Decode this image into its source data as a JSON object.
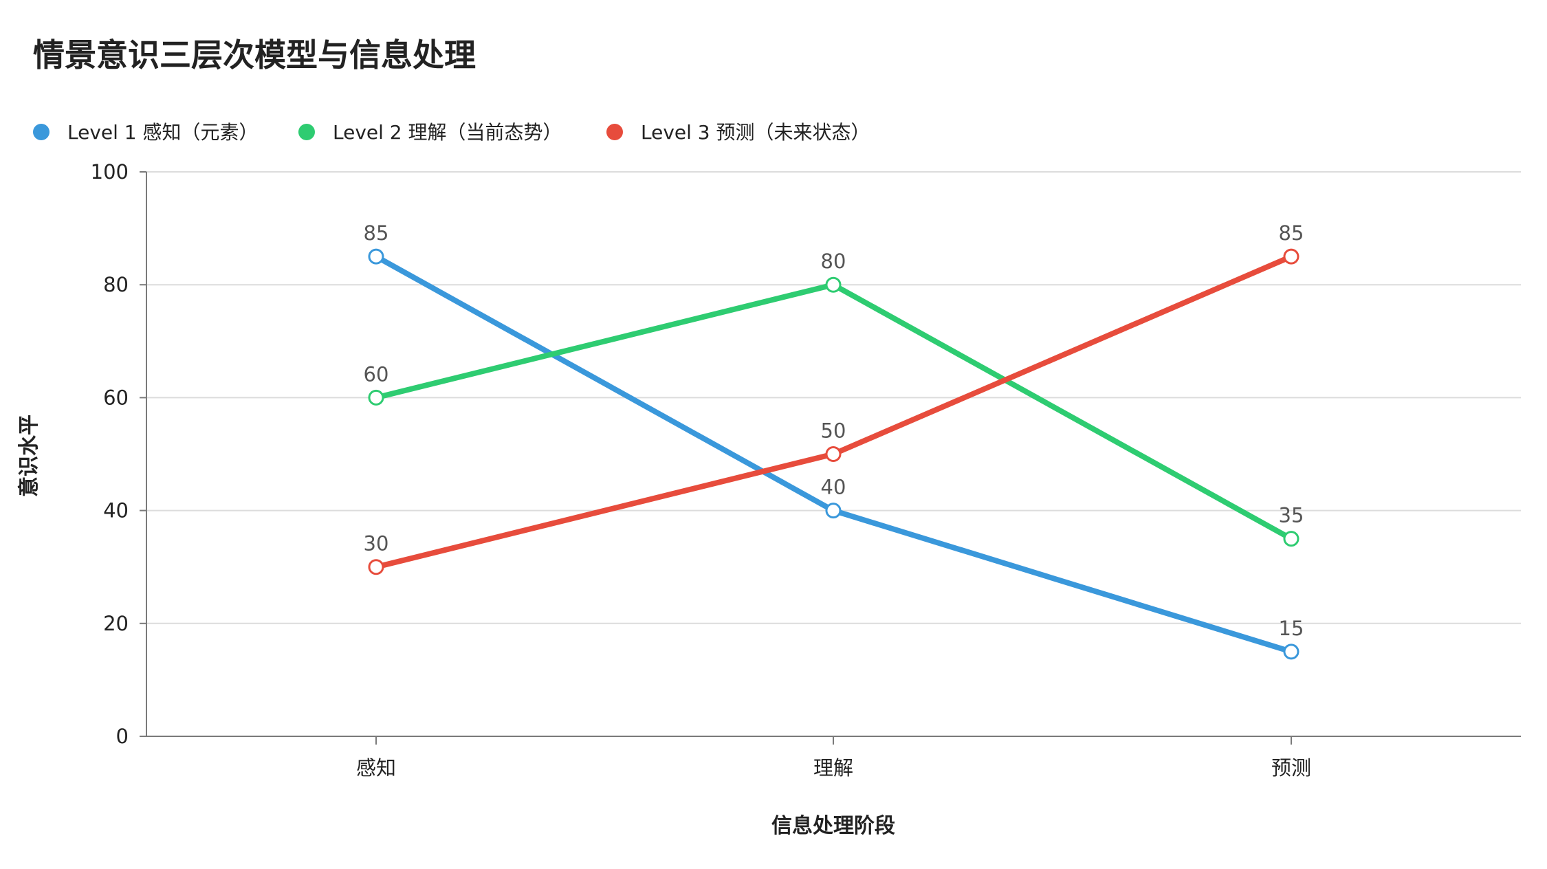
{
  "chart_data": {
    "type": "line",
    "title": "情景意识三层次模型与信息处理",
    "xlabel": "信息处理阶段",
    "ylabel": "意识水平",
    "categories": [
      "感知",
      "理解",
      "预测"
    ],
    "ylim": [
      0,
      100
    ],
    "yticks": [
      0,
      20,
      40,
      60,
      80,
      100
    ],
    "grid": true,
    "legend_position": "top-left",
    "series": [
      {
        "name": "Level 1 感知（元素）",
        "color": "#3a98db",
        "values": [
          85,
          40,
          15
        ]
      },
      {
        "name": "Level 2 理解（当前态势）",
        "color": "#2ecc71",
        "values": [
          60,
          80,
          35
        ]
      },
      {
        "name": "Level 3 预测（未来状态）",
        "color": "#e74c3c",
        "values": [
          30,
          50,
          85
        ]
      }
    ]
  }
}
